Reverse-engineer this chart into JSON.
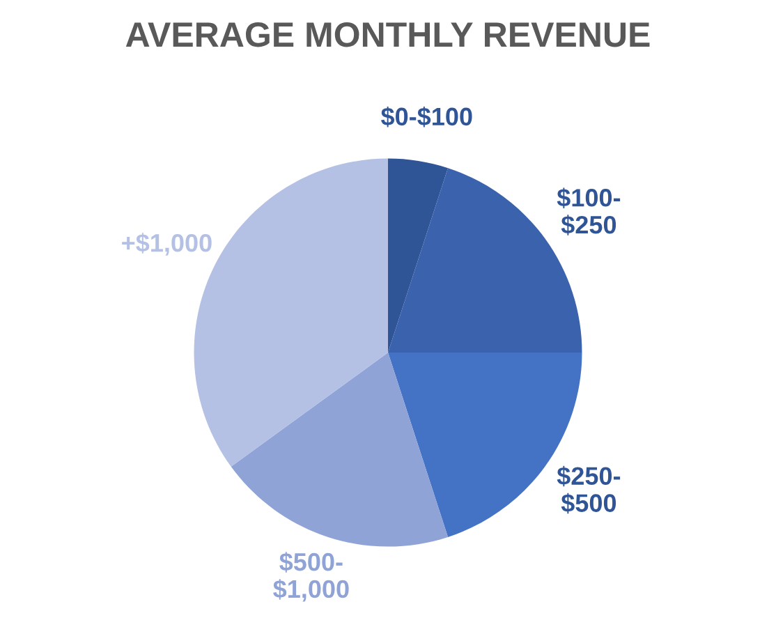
{
  "chart_data": {
    "type": "pie",
    "title": "AVERAGE MONTHLY REVENUE",
    "categories": [
      "$0-$100",
      "$100-\n$250",
      "$250-\n$500",
      "$500-\n$1,000",
      "+$1,000"
    ],
    "values": [
      5,
      20,
      20,
      20,
      35
    ],
    "colors": [
      "#2f5597",
      "#3a62ad",
      "#4472c4",
      "#8fa3d6",
      "#b4c0e4"
    ]
  }
}
